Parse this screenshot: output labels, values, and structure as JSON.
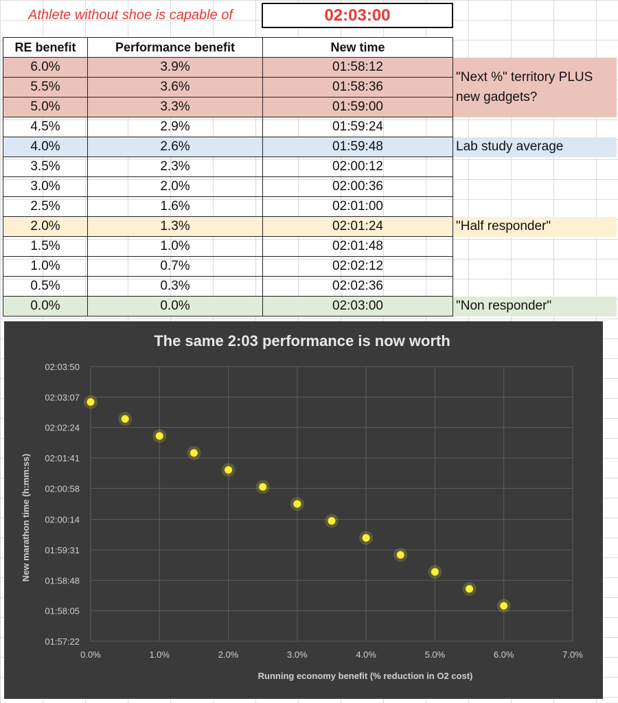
{
  "header": {
    "label": "Athlete without shoe is capable of",
    "time": "02:03:00"
  },
  "table": {
    "columns": [
      "RE benefit",
      "Performance benefit",
      "New time"
    ],
    "rows": [
      {
        "re": "6.0%",
        "perf": "3.9%",
        "time": "01:58:12"
      },
      {
        "re": "5.5%",
        "perf": "3.6%",
        "time": "01:58:36"
      },
      {
        "re": "5.0%",
        "perf": "3.3%",
        "time": "01:59:00"
      },
      {
        "re": "4.5%",
        "perf": "2.9%",
        "time": "01:59:24"
      },
      {
        "re": "4.0%",
        "perf": "2.6%",
        "time": "01:59:48"
      },
      {
        "re": "3.5%",
        "perf": "2.3%",
        "time": "02:00:12"
      },
      {
        "re": "3.0%",
        "perf": "2.0%",
        "time": "02:00:36"
      },
      {
        "re": "2.5%",
        "perf": "1.6%",
        "time": "02:01:00"
      },
      {
        "re": "2.0%",
        "perf": "1.3%",
        "time": "02:01:24"
      },
      {
        "re": "1.5%",
        "perf": "1.0%",
        "time": "02:01:48"
      },
      {
        "re": "1.0%",
        "perf": "0.7%",
        "time": "02:02:12"
      },
      {
        "re": "0.5%",
        "perf": "0.3%",
        "time": "02:02:36"
      },
      {
        "re": "0.0%",
        "perf": "0.0%",
        "time": "02:03:00"
      }
    ],
    "notes": {
      "next_pct": "\"Next %\" territory PLUS new gadgets?",
      "lab_average": "Lab study average",
      "half_responder": "\"Half responder\"",
      "non_responder": "\"Non responder\""
    },
    "colors": {
      "next_pct": "#ecc3bb",
      "lab_average": "#dbe7f4",
      "half_responder": "#fdf0d3",
      "non_responder": "#e1ebd9"
    }
  },
  "chart_data": {
    "type": "scatter",
    "title": "The same 2:03 performance is now worth",
    "xlabel": "Running economy benefit (% reduction in O2 cost)",
    "ylabel": "New marathon time (h:mm:ss)",
    "xlim": [
      0,
      7
    ],
    "x_ticks": [
      "0.0%",
      "1.0%",
      "2.0%",
      "3.0%",
      "4.0%",
      "5.0%",
      "6.0%",
      "7.0%"
    ],
    "y_ticks": [
      "01:57:22",
      "01:58:05",
      "01:58:48",
      "01:59:31",
      "02:00:14",
      "02:00:58",
      "02:01:41",
      "02:02:24",
      "02:03:07",
      "02:03:50"
    ],
    "ylim": [
      "01:57:22",
      "02:03:50"
    ],
    "grid": true,
    "marker_color": "#ffee33",
    "background": "#3a3a3a",
    "points": [
      {
        "x": 0.0,
        "y": "02:03:00"
      },
      {
        "x": 0.5,
        "y": "02:02:36"
      },
      {
        "x": 1.0,
        "y": "02:02:12"
      },
      {
        "x": 1.5,
        "y": "02:01:48"
      },
      {
        "x": 2.0,
        "y": "02:01:24"
      },
      {
        "x": 2.5,
        "y": "02:01:00"
      },
      {
        "x": 3.0,
        "y": "02:00:36"
      },
      {
        "x": 3.5,
        "y": "02:00:12"
      },
      {
        "x": 4.0,
        "y": "01:59:48"
      },
      {
        "x": 4.5,
        "y": "01:59:24"
      },
      {
        "x": 5.0,
        "y": "01:59:00"
      },
      {
        "x": 5.5,
        "y": "01:58:36"
      },
      {
        "x": 6.0,
        "y": "01:58:12"
      }
    ]
  }
}
